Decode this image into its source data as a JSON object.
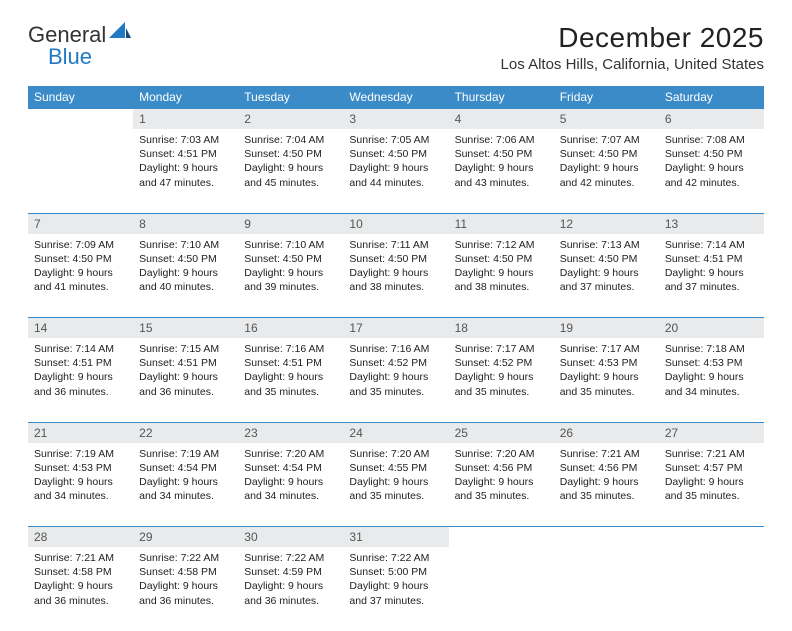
{
  "logo": {
    "text1": "General",
    "text2": "Blue"
  },
  "header": {
    "month": "December 2025",
    "location": "Los Altos Hills, California, United States"
  },
  "colors": {
    "header_bg": "#3b8bc8",
    "header_text": "#ffffff",
    "daynum_bg": "#e9eaeb",
    "daynum_text": "#555555",
    "border": "#3b8bc8",
    "body_text": "#222222",
    "logo_blue": "#2279c3"
  },
  "columns": [
    "Sunday",
    "Monday",
    "Tuesday",
    "Wednesday",
    "Thursday",
    "Friday",
    "Saturday"
  ],
  "weeks": [
    {
      "nums": [
        "",
        "1",
        "2",
        "3",
        "4",
        "5",
        "6"
      ],
      "cells": [
        "",
        "Sunrise: 7:03 AM\nSunset: 4:51 PM\nDaylight: 9 hours and 47 minutes.",
        "Sunrise: 7:04 AM\nSunset: 4:50 PM\nDaylight: 9 hours and 45 minutes.",
        "Sunrise: 7:05 AM\nSunset: 4:50 PM\nDaylight: 9 hours and 44 minutes.",
        "Sunrise: 7:06 AM\nSunset: 4:50 PM\nDaylight: 9 hours and 43 minutes.",
        "Sunrise: 7:07 AM\nSunset: 4:50 PM\nDaylight: 9 hours and 42 minutes.",
        "Sunrise: 7:08 AM\nSunset: 4:50 PM\nDaylight: 9 hours and 42 minutes."
      ]
    },
    {
      "nums": [
        "7",
        "8",
        "9",
        "10",
        "11",
        "12",
        "13"
      ],
      "cells": [
        "Sunrise: 7:09 AM\nSunset: 4:50 PM\nDaylight: 9 hours and 41 minutes.",
        "Sunrise: 7:10 AM\nSunset: 4:50 PM\nDaylight: 9 hours and 40 minutes.",
        "Sunrise: 7:10 AM\nSunset: 4:50 PM\nDaylight: 9 hours and 39 minutes.",
        "Sunrise: 7:11 AM\nSunset: 4:50 PM\nDaylight: 9 hours and 38 minutes.",
        "Sunrise: 7:12 AM\nSunset: 4:50 PM\nDaylight: 9 hours and 38 minutes.",
        "Sunrise: 7:13 AM\nSunset: 4:50 PM\nDaylight: 9 hours and 37 minutes.",
        "Sunrise: 7:14 AM\nSunset: 4:51 PM\nDaylight: 9 hours and 37 minutes."
      ]
    },
    {
      "nums": [
        "14",
        "15",
        "16",
        "17",
        "18",
        "19",
        "20"
      ],
      "cells": [
        "Sunrise: 7:14 AM\nSunset: 4:51 PM\nDaylight: 9 hours and 36 minutes.",
        "Sunrise: 7:15 AM\nSunset: 4:51 PM\nDaylight: 9 hours and 36 minutes.",
        "Sunrise: 7:16 AM\nSunset: 4:51 PM\nDaylight: 9 hours and 35 minutes.",
        "Sunrise: 7:16 AM\nSunset: 4:52 PM\nDaylight: 9 hours and 35 minutes.",
        "Sunrise: 7:17 AM\nSunset: 4:52 PM\nDaylight: 9 hours and 35 minutes.",
        "Sunrise: 7:17 AM\nSunset: 4:53 PM\nDaylight: 9 hours and 35 minutes.",
        "Sunrise: 7:18 AM\nSunset: 4:53 PM\nDaylight: 9 hours and 34 minutes."
      ]
    },
    {
      "nums": [
        "21",
        "22",
        "23",
        "24",
        "25",
        "26",
        "27"
      ],
      "cells": [
        "Sunrise: 7:19 AM\nSunset: 4:53 PM\nDaylight: 9 hours and 34 minutes.",
        "Sunrise: 7:19 AM\nSunset: 4:54 PM\nDaylight: 9 hours and 34 minutes.",
        "Sunrise: 7:20 AM\nSunset: 4:54 PM\nDaylight: 9 hours and 34 minutes.",
        "Sunrise: 7:20 AM\nSunset: 4:55 PM\nDaylight: 9 hours and 35 minutes.",
        "Sunrise: 7:20 AM\nSunset: 4:56 PM\nDaylight: 9 hours and 35 minutes.",
        "Sunrise: 7:21 AM\nSunset: 4:56 PM\nDaylight: 9 hours and 35 minutes.",
        "Sunrise: 7:21 AM\nSunset: 4:57 PM\nDaylight: 9 hours and 35 minutes."
      ]
    },
    {
      "nums": [
        "28",
        "29",
        "30",
        "31",
        "",
        "",
        ""
      ],
      "cells": [
        "Sunrise: 7:21 AM\nSunset: 4:58 PM\nDaylight: 9 hours and 36 minutes.",
        "Sunrise: 7:22 AM\nSunset: 4:58 PM\nDaylight: 9 hours and 36 minutes.",
        "Sunrise: 7:22 AM\nSunset: 4:59 PM\nDaylight: 9 hours and 36 minutes.",
        "Sunrise: 7:22 AM\nSunset: 5:00 PM\nDaylight: 9 hours and 37 minutes.",
        "",
        "",
        ""
      ]
    }
  ]
}
